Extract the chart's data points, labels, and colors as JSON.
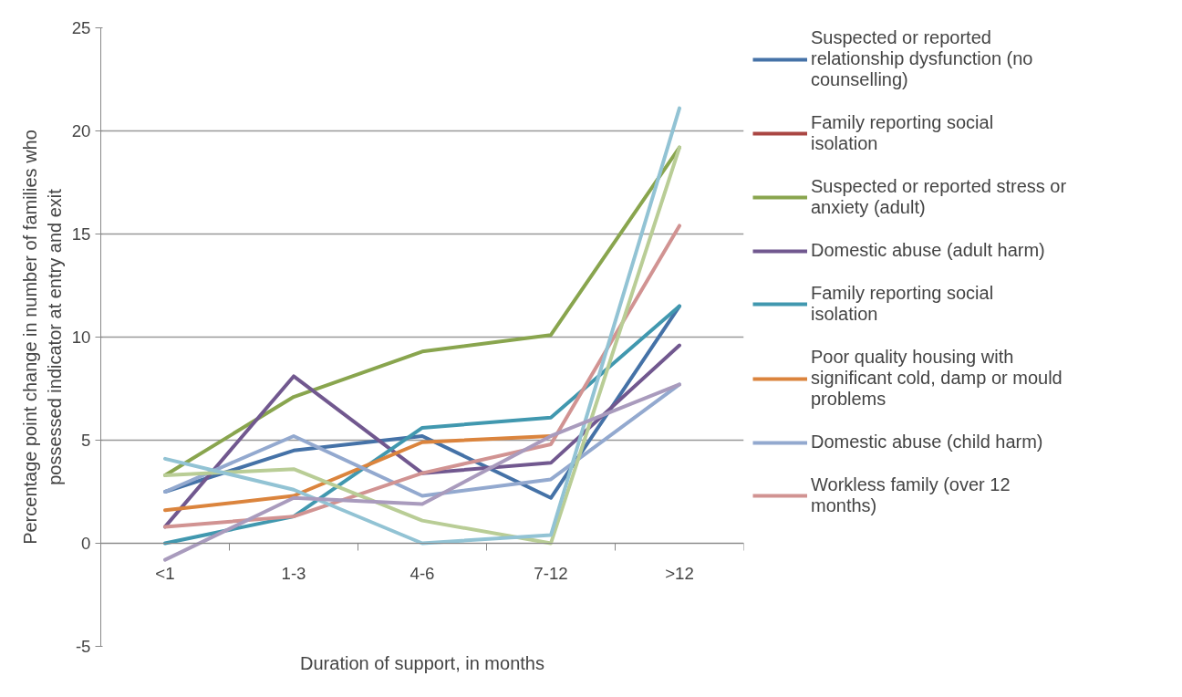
{
  "chart_data": {
    "type": "line",
    "xlabel": "Duration of support, in months",
    "ylabel": "Percentage point change in number of families who possessed indicator at entry and exit",
    "categories": [
      "<1",
      "1-3",
      "4-6",
      "7-12",
      ">12"
    ],
    "ylim": [
      -5,
      25
    ],
    "yticks": [
      -5,
      0,
      5,
      10,
      15,
      20,
      25
    ],
    "grid": "y",
    "legend": "right",
    "marker": "none",
    "line_style": "solid",
    "series": [
      {
        "name": "Suspected or reported relationship dysfunction (no counselling)",
        "color": "#4572a7",
        "values": [
          2.5,
          4.5,
          5.2,
          2.2,
          11.5
        ]
      },
      {
        "name": "Family reporting social isolation",
        "color": "#aa4643",
        "values": [
          null,
          null,
          null,
          null,
          null
        ]
      },
      {
        "name": "Suspected or reported stress or anxiety (adult)",
        "color": "#89a54e",
        "values": [
          3.3,
          7.1,
          9.3,
          10.1,
          19.2
        ]
      },
      {
        "name": "Domestic abuse (adult harm)",
        "color": "#71588f",
        "values": [
          0.8,
          8.1,
          3.4,
          3.9,
          9.6
        ]
      },
      {
        "name": "Family reporting social isolation",
        "color": "#4198af",
        "values": [
          0,
          1.3,
          5.6,
          6.1,
          11.5
        ]
      },
      {
        "name": "Poor quality housing with significant cold, damp or mould problems",
        "color": "#db843d",
        "values": [
          1.6,
          2.3,
          4.9,
          5.2,
          null
        ]
      },
      {
        "name": "Domestic abuse (child harm)",
        "color": "#93a9cf",
        "values": [
          2.5,
          5.2,
          2.3,
          3.1,
          7.7
        ]
      },
      {
        "name": "Workless family (over 12 months)",
        "color": "#d19392",
        "values": [
          0.8,
          1.3,
          3.4,
          4.8,
          15.4
        ]
      },
      {
        "color": "#b9cd96",
        "values": [
          3.3,
          3.6,
          1.1,
          0,
          19.2
        ]
      },
      {
        "color": "#92c3d4",
        "values": [
          4.1,
          2.6,
          0,
          0.4,
          21.1
        ]
      },
      {
        "color": "#a99bbd",
        "values": [
          -0.8,
          2.2,
          1.9,
          5.2,
          7.7
        ]
      }
    ]
  }
}
